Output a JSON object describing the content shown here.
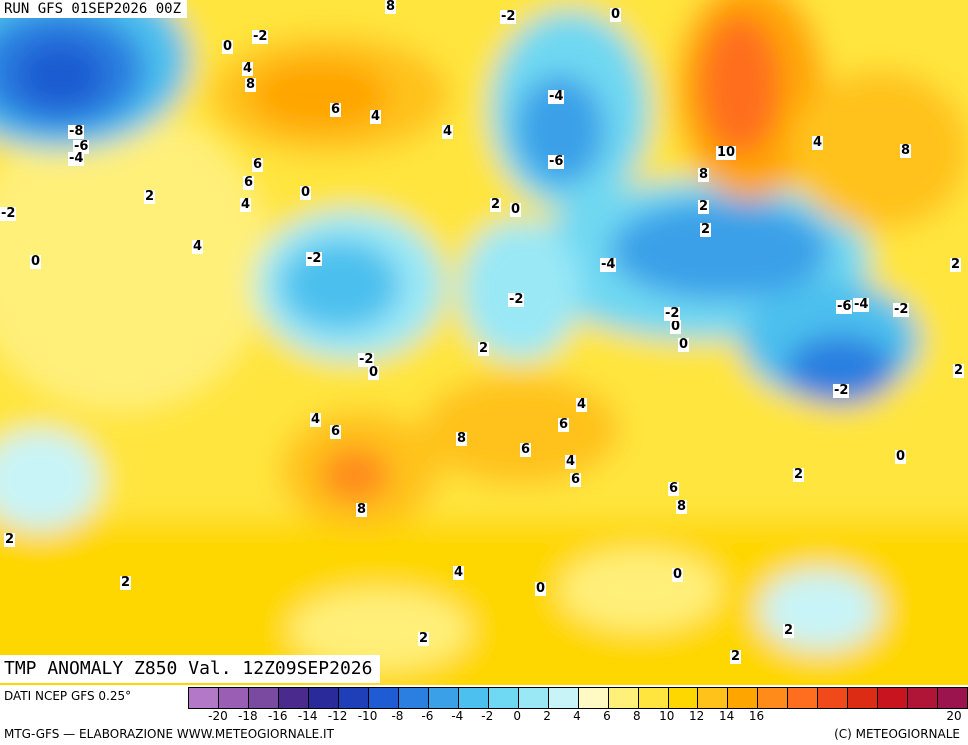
{
  "header": {
    "run_label": "RUN GFS 01SEP2026 00Z"
  },
  "map_title": "TMP ANOMALY Z850 Val. 12Z09SEP2026",
  "footer": {
    "data_source": "DATI NCEP GFS 0.25°",
    "credit_left": "MTG-GFS — ELABORAZIONE WWW.METEOGIORNALE.IT",
    "credit_right": "(C) METEOGIORNALE"
  },
  "legend": {
    "tick_labels": [
      "-20",
      "-18",
      "-16",
      "-14",
      "-12",
      "-10",
      "-8",
      "-6",
      "-4",
      "-2",
      "0",
      "2",
      "4",
      "6",
      "8",
      "10",
      "12",
      "14",
      "16",
      "20"
    ],
    "colors": [
      "#b478c8",
      "#9a5fb4",
      "#7a4aa0",
      "#4a2a8c",
      "#2a2a9a",
      "#1e3fb8",
      "#1f5bd2",
      "#2a7fe0",
      "#3aa0e8",
      "#4cc0ee",
      "#6fd8f2",
      "#9ae8f6",
      "#c8f4f8",
      "#fff9c4",
      "#fff07a",
      "#ffe53d",
      "#ffd700",
      "#ffc21a",
      "#ffa500",
      "#ff8c1a",
      "#ff6e1f",
      "#f04a1a",
      "#dc2d14",
      "#c8141e",
      "#b01437",
      "#9c144e"
    ]
  },
  "contour_labels": [
    "0",
    "-2",
    "-2",
    "0",
    "4",
    "8",
    "8",
    "4",
    "6",
    "4",
    "-8",
    "-6",
    "-4",
    "-4",
    "-6",
    "10",
    "8",
    "2",
    "4",
    "8",
    "6",
    "6",
    "2",
    "0",
    "2",
    "0",
    "2",
    "4",
    "0",
    "-2",
    "4",
    "2",
    "-2",
    "-4",
    "-2",
    "0",
    "-2",
    "-6",
    "-2",
    "0",
    "2",
    "0",
    "-4",
    "-2",
    "2",
    "-2",
    "0",
    "4",
    "6",
    "8",
    "6",
    "4",
    "6",
    "6",
    "8",
    "6",
    "8",
    "4",
    "2",
    "2",
    "2",
    "0",
    "4",
    "0",
    "2",
    "2",
    "2"
  ]
}
